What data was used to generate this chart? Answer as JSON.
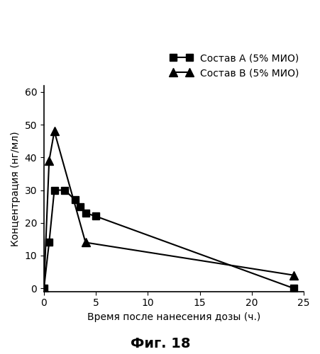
{
  "series_A": {
    "label": "Состав А (5% МИО)",
    "x": [
      0,
      0.5,
      1,
      2,
      3,
      3.5,
      4,
      5,
      24
    ],
    "y": [
      0,
      14,
      30,
      30,
      27,
      25,
      23,
      22,
      0
    ],
    "marker": "s",
    "color": "#000000",
    "linestyle": "-"
  },
  "series_B": {
    "label": "Состав В (5% МИО)",
    "x": [
      0,
      0.5,
      1,
      4,
      24
    ],
    "y": [
      0,
      39,
      48,
      14,
      4
    ],
    "marker": "^",
    "color": "#000000",
    "linestyle": "-"
  },
  "xlabel": "Время после нанесения дозы (ч.)",
  "ylabel": "Концентрация (нг/мл)",
  "title_fig": "Фиг. 18",
  "xlim": [
    0,
    25
  ],
  "ylim": [
    -1,
    62
  ],
  "xticks": [
    0,
    5,
    10,
    15,
    20,
    25
  ],
  "yticks": [
    0,
    10,
    20,
    30,
    40,
    50,
    60
  ],
  "background_color": "#ffffff"
}
